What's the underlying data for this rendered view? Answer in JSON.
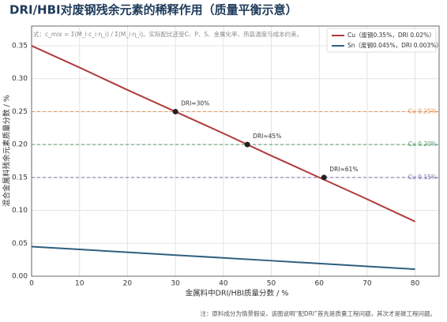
{
  "chart_data": {
    "type": "line",
    "title": "DRI/HBI对废钢残余元素的稀释作用（质量平衡示意）",
    "annotation": "式：c_mix = Σ(M_i·c_i·η_i) / Σ(M_i·η_i)。实际配比还受C、P、S、金属化率、热装温度与成本约束。",
    "xlabel": "金属料中DRI/HBI质量分数 / %",
    "ylabel": "混合金属料残余元素质量分数 / %",
    "footnote": "注：原料成分为情景假设，该图说明“配DRI”首先是质量工程问题，其次才是碳工程问题。",
    "x": [
      0,
      10,
      20,
      30,
      40,
      50,
      60,
      70,
      80
    ],
    "series": [
      {
        "name": "Cu（废钢0.35%，DRI 0.02%）",
        "color": "#b03a3a",
        "values": [
          0.35,
          0.317,
          0.283,
          0.25,
          0.217,
          0.183,
          0.15,
          0.117,
          0.083
        ]
      },
      {
        "name": "Sn（废钢0.045%，DRI 0.003%）",
        "color": "#2f5f7f",
        "values": [
          0.045,
          0.0407,
          0.0364,
          0.0321,
          0.0279,
          0.0236,
          0.0193,
          0.015,
          0.0107
        ]
      }
    ],
    "reference_lines": [
      {
        "y": 0.25,
        "label": "Cu 0.25%",
        "color": "#e0955a"
      },
      {
        "y": 0.2,
        "label": "Cu 0.20%",
        "color": "#5a9a6a"
      },
      {
        "y": 0.15,
        "label": "Cu 0.15%",
        "color": "#7a73b0"
      }
    ],
    "markers": [
      {
        "x": 30,
        "y": 0.25,
        "label": "DRI≈30%"
      },
      {
        "x": 45,
        "y": 0.2,
        "label": "DRI≈45%"
      },
      {
        "x": 61,
        "y": 0.15,
        "label": "DRI≈61%"
      }
    ],
    "xlim": [
      0,
      85
    ],
    "ylim": [
      0,
      0.38
    ],
    "xticks": [
      0,
      10,
      20,
      30,
      40,
      50,
      60,
      70,
      80
    ],
    "yticks": [
      {
        "value": 0,
        "label": "0.00"
      },
      0.05,
      {
        "value": 0.1,
        "label": "0.10"
      },
      0.15,
      {
        "value": 0.2,
        "label": "0.20"
      },
      0.25,
      {
        "value": 0.3,
        "label": "0.30"
      },
      0.35
    ],
    "grid": true,
    "legend": "upper right"
  }
}
